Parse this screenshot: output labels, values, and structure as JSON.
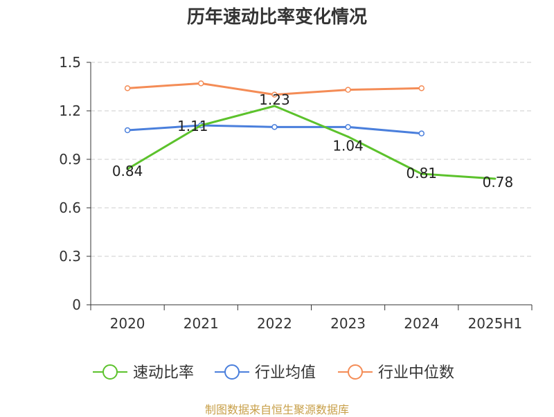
{
  "chart_data": {
    "type": "line",
    "title": "历年速动比率变化情况",
    "categories": [
      "2020",
      "2021",
      "2022",
      "2023",
      "2024",
      "2025H1"
    ],
    "yticks": [
      "0",
      "0.3",
      "0.6",
      "0.9",
      "1.2",
      "1.5"
    ],
    "ylim": [
      0,
      1.5
    ],
    "grid": true,
    "legend_position": "bottom",
    "series": [
      {
        "name": "速动比率",
        "color": "#5cc22c",
        "values": [
          0.84,
          1.11,
          1.23,
          1.04,
          0.81,
          0.78
        ],
        "labels": [
          "0.84",
          "1.11",
          "1.23",
          "1.04",
          "0.81",
          "0.78"
        ]
      },
      {
        "name": "行业均值",
        "color": "#4a7fdc",
        "values": [
          1.08,
          1.11,
          1.1,
          1.1,
          1.06,
          null
        ]
      },
      {
        "name": "行业中位数",
        "color": "#f48c56",
        "values": [
          1.34,
          1.37,
          1.3,
          1.33,
          1.34,
          null
        ]
      }
    ]
  },
  "source": "制图数据来自恒生聚源数据库"
}
